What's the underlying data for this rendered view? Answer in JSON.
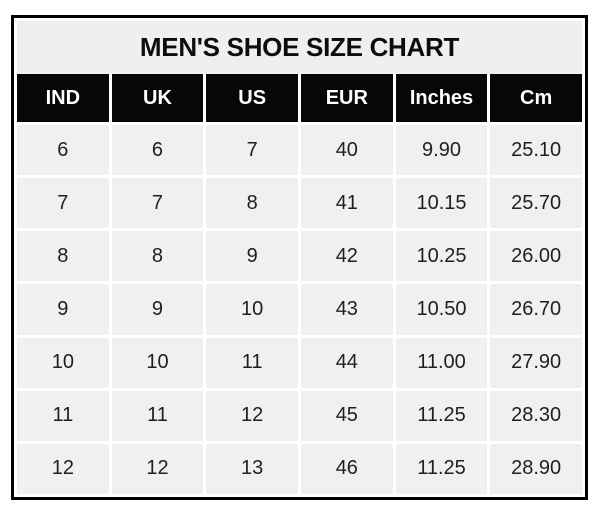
{
  "chart_data": {
    "type": "table",
    "title": "MEN'S SHOE SIZE CHART",
    "columns": [
      "IND",
      "UK",
      "US",
      "EUR",
      "Inches",
      "Cm"
    ],
    "rows": [
      [
        "6",
        "6",
        "7",
        "40",
        "9.90",
        "25.10"
      ],
      [
        "7",
        "7",
        "8",
        "41",
        "10.15",
        "25.70"
      ],
      [
        "8",
        "8",
        "9",
        "42",
        "10.25",
        "26.00"
      ],
      [
        "9",
        "9",
        "10",
        "43",
        "10.50",
        "26.70"
      ],
      [
        "10",
        "10",
        "11",
        "44",
        "11.00",
        "27.90"
      ],
      [
        "11",
        "11",
        "12",
        "45",
        "11.25",
        "28.30"
      ],
      [
        "12",
        "12",
        "13",
        "46",
        "11.25",
        "28.90"
      ]
    ],
    "layout": {
      "grid": "on",
      "legend": "none",
      "header_style": "black band, white bold text",
      "title_position": "top center"
    }
  },
  "colors": {
    "border": "#000000",
    "title_bg": "#f0efee",
    "header_bg": "#070707",
    "header_text": "#ffffff",
    "cell_bg": "#f2f0ef",
    "grid_line": "#ffffff",
    "cell_text": "#1f1f1f"
  }
}
